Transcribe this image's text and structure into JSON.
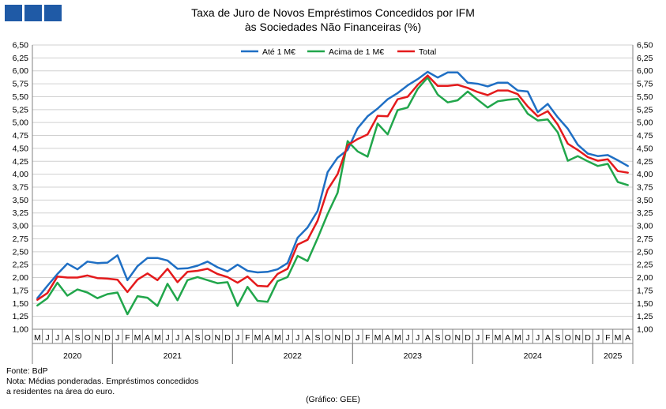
{
  "header": {
    "title_line1": "Taxa de Juro de Novos Empréstimos Concedidos por IFM",
    "title_line2": "às Sociedades Não Financeiras (%)"
  },
  "logo_icon": "bank-logo-icon",
  "footer": {
    "source": "Fonte: BdP",
    "note_line1": "Nota: Médias ponderadas. Empréstimos concedidos",
    "note_line2": "a residentes na área do euro.",
    "credit": "(Gráfico: GEE)"
  },
  "chart_data": {
    "type": "line",
    "title": "Taxa de Juro de Novos Empréstimos Concedidos por IFM às Sociedades Não Financeiras (%)",
    "ylim": [
      1.0,
      6.5
    ],
    "yticks": [
      "1,00",
      "1,25",
      "1,50",
      "1,75",
      "2,00",
      "2,25",
      "2,50",
      "2,75",
      "3,00",
      "3,25",
      "3,50",
      "3,75",
      "4,00",
      "4,25",
      "4,50",
      "4,75",
      "5,00",
      "5,25",
      "5,50",
      "5,75",
      "6,00",
      "6,25",
      "6,50"
    ],
    "grid": true,
    "legend_position": "top-center",
    "x": [
      "M",
      "J",
      "J",
      "A",
      "S",
      "O",
      "N",
      "D",
      "J",
      "F",
      "M",
      "A",
      "M",
      "J",
      "J",
      "A",
      "S",
      "O",
      "N",
      "D",
      "J",
      "F",
      "M",
      "A",
      "M",
      "J",
      "J",
      "A",
      "S",
      "O",
      "N",
      "D",
      "J",
      "F",
      "M",
      "A",
      "M",
      "J",
      "J",
      "A",
      "S",
      "O",
      "N",
      "D",
      "J",
      "F",
      "M",
      "A",
      "M",
      "J",
      "J",
      "A",
      "S",
      "O",
      "N",
      "D",
      "J",
      "F",
      "M",
      "A"
    ],
    "years": [
      {
        "label": "2020",
        "start": 0,
        "end": 7
      },
      {
        "label": "2021",
        "start": 8,
        "end": 19
      },
      {
        "label": "2022",
        "start": 20,
        "end": 31
      },
      {
        "label": "2023",
        "start": 32,
        "end": 43
      },
      {
        "label": "2024",
        "start": 44,
        "end": 55
      },
      {
        "label": "2025",
        "start": 56,
        "end": 59
      }
    ],
    "series": [
      {
        "name": "Até 1 M€",
        "color": "#1f6fc4",
        "values": [
          1.6,
          1.84,
          2.07,
          2.27,
          2.16,
          2.31,
          2.28,
          2.29,
          2.43,
          1.95,
          2.22,
          2.38,
          2.38,
          2.33,
          2.17,
          2.18,
          2.23,
          2.31,
          2.2,
          2.12,
          2.25,
          2.13,
          2.1,
          2.11,
          2.16,
          2.28,
          2.77,
          2.97,
          3.29,
          4.04,
          4.32,
          4.47,
          4.89,
          5.12,
          5.27,
          5.45,
          5.57,
          5.72,
          5.84,
          5.98,
          5.87,
          5.97,
          5.97,
          5.77,
          5.75,
          5.7,
          5.77,
          5.77,
          5.62,
          5.6,
          5.2,
          5.36,
          5.1,
          4.88,
          4.57,
          4.4,
          4.35,
          4.37,
          4.27,
          4.16
        ]
      },
      {
        "name": "Acima de 1 M€",
        "color": "#21a64b",
        "values": [
          1.46,
          1.6,
          1.9,
          1.65,
          1.77,
          1.71,
          1.6,
          1.68,
          1.71,
          1.29,
          1.64,
          1.61,
          1.45,
          1.88,
          1.56,
          1.95,
          2.01,
          1.95,
          1.89,
          1.91,
          1.45,
          1.82,
          1.55,
          1.53,
          1.93,
          2.01,
          2.42,
          2.32,
          2.76,
          3.23,
          3.64,
          4.64,
          4.44,
          4.34,
          4.98,
          4.77,
          5.24,
          5.29,
          5.65,
          5.87,
          5.54,
          5.39,
          5.43,
          5.6,
          5.44,
          5.29,
          5.41,
          5.44,
          5.46,
          5.17,
          5.04,
          5.06,
          4.81,
          4.26,
          4.35,
          4.25,
          4.16,
          4.2,
          3.85,
          3.79
        ]
      },
      {
        "name": "Total",
        "color": "#e41a1c",
        "values": [
          1.57,
          1.7,
          2.02,
          2.0,
          2.0,
          2.04,
          1.99,
          1.98,
          1.96,
          1.72,
          1.96,
          2.08,
          1.95,
          2.17,
          1.91,
          2.11,
          2.13,
          2.17,
          2.07,
          2.01,
          1.9,
          2.02,
          1.84,
          1.83,
          2.07,
          2.17,
          2.64,
          2.73,
          3.1,
          3.7,
          4.0,
          4.56,
          4.68,
          4.77,
          5.13,
          5.12,
          5.45,
          5.5,
          5.73,
          5.91,
          5.71,
          5.71,
          5.73,
          5.67,
          5.59,
          5.53,
          5.62,
          5.62,
          5.55,
          5.31,
          5.12,
          5.22,
          4.96,
          4.59,
          4.47,
          4.33,
          4.26,
          4.29,
          4.06,
          4.03
        ]
      }
    ]
  }
}
